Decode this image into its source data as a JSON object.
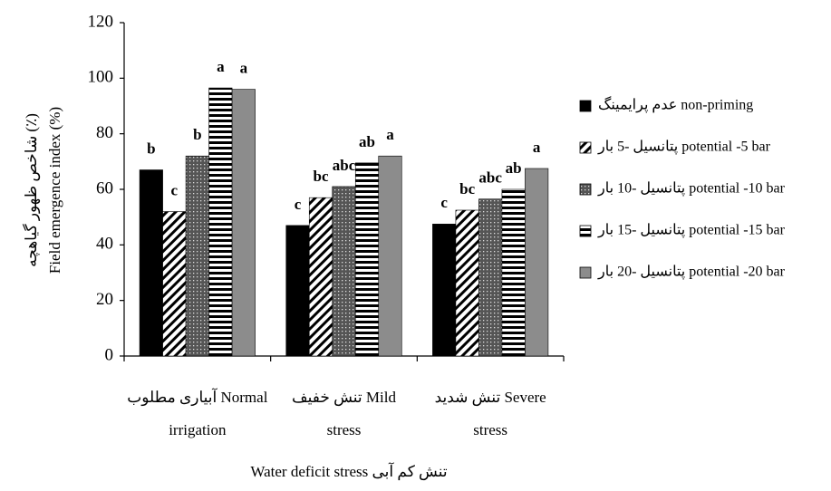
{
  "chart_data": {
    "type": "bar",
    "ylabel": [
      "شاخص ظهور گیاهچه (٪)",
      "Field emergence index (%)"
    ],
    "xlabel": "Water deficit stress تنش کم آبی",
    "categories": [
      [
        "آبیاری مطلوب Normal",
        "irrigation"
      ],
      [
        "تنش خفیف Mild",
        "stress"
      ],
      [
        "تنش شدید Severe",
        "stress"
      ]
    ],
    "series": [
      {
        "name": "عدم پرایمینگ non-priming",
        "color": "#000000",
        "pattern": "solid",
        "values": [
          67,
          47,
          47.5
        ],
        "letters": [
          "b",
          "c",
          "c"
        ]
      },
      {
        "name": "پتانسیل -5 بار potential -5 bar",
        "color": "#000000",
        "pattern": "diagonal",
        "values": [
          52,
          57,
          52.5
        ],
        "letters": [
          "c",
          "bc",
          "bc"
        ]
      },
      {
        "name": "پتانسیل -10 بار potential -10 bar",
        "color": "#555555",
        "pattern": "dots",
        "values": [
          72,
          61,
          56.5
        ],
        "letters": [
          "b",
          "abc",
          "abc"
        ]
      },
      {
        "name": "پتانسیل -15 بار potential -15 bar",
        "color": "#000000",
        "pattern": "horizontal",
        "values": [
          96.5,
          69.5,
          60
        ],
        "letters": [
          "a",
          "ab",
          "ab"
        ]
      },
      {
        "name": "پتانسیل -20 بار potential -20 bar",
        "color": "#8c8c8c",
        "pattern": "solid",
        "values": [
          96,
          72,
          67.5
        ],
        "letters": [
          "a",
          "a",
          "a"
        ]
      }
    ],
    "ylim": [
      0,
      120
    ],
    "yticks": [
      0,
      20,
      40,
      60,
      80,
      100,
      120
    ],
    "grid": false
  }
}
